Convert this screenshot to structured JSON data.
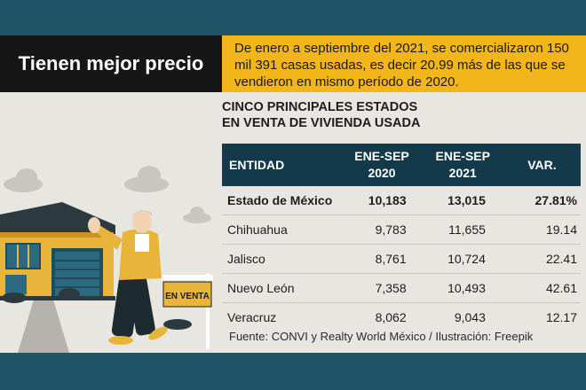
{
  "title": "Tienen mejor precio",
  "summary": "De enero a septiembre del 2021, se comercializaron 150 mil 391 casas usadas, es decir 20.99 más de las que se vendieron en mismo período de 2020.",
  "table_title_line1": "CINCO PRINCIPALES ESTADOS",
  "table_title_line2": "EN VENTA DE VIVIENDA USADA",
  "headers": {
    "entidad": "ENTIDAD",
    "col2020_line1": "ENE-SEP",
    "col2020_line2": "2020",
    "col2021_line1": "ENE-SEP",
    "col2021_line2": "2021",
    "var": "VAR."
  },
  "rows": [
    {
      "entidad": "Estado de México",
      "v2020": "10,183",
      "v2021": "13,015",
      "var": "27.81%"
    },
    {
      "entidad": "Chihuahua",
      "v2020": "9,783",
      "v2021": "11,655",
      "var": "19.14"
    },
    {
      "entidad": "Jalisco",
      "v2020": "8,761",
      "v2021": "10,724",
      "var": "22.41"
    },
    {
      "entidad": "Nuevo León",
      "v2020": "7,358",
      "v2021": "10,493",
      "var": "42.61"
    },
    {
      "entidad": "Veracruz",
      "v2020": "8,062",
      "v2021": "9,043",
      "var": "12.17"
    }
  ],
  "sign_text": "EN VENTA",
  "source": "Fuente: CONVI y Realty World México / Ilustración: Freepik",
  "colors": {
    "background": "#1f5566",
    "card": "#e8e6e1",
    "title_box": "#161616",
    "summary_box": "#f2b51a",
    "table_header": "#14394a",
    "house": "#e9b43a"
  }
}
